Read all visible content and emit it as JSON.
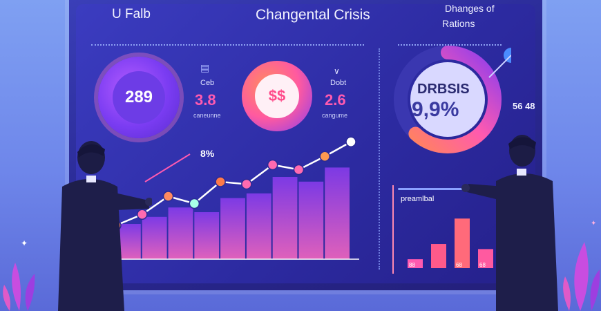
{
  "header": {
    "left_title": "U Falb",
    "center_title": "Changental Crisis",
    "right_title_line1": "Dhanges of",
    "right_title_line2": "Rations"
  },
  "kpis": [
    {
      "value": "289"
    },
    {
      "value": "$$"
    }
  ],
  "stats": [
    {
      "label": "Ceb",
      "value": "3.8",
      "sub": "caneunne"
    },
    {
      "label": "Dobt",
      "value": "2.6",
      "sub": "cangume"
    }
  ],
  "donut": {
    "label": "DRBSIS",
    "value": "9,9%",
    "side_value": "56 48",
    "fraction": 0.62
  },
  "line_chart": {
    "annotation": "8%",
    "points": [
      0.28,
      0.37,
      0.52,
      0.46,
      0.64,
      0.62,
      0.78,
      0.74,
      0.85,
      0.97
    ],
    "bar_heights": [
      0.3,
      0.36,
      0.44,
      0.4,
      0.52,
      0.56,
      0.7,
      0.66,
      0.78,
      0.9
    ]
  },
  "bar_panel": {
    "label": "preamlbal",
    "values": [
      0.14,
      0.38,
      0.78,
      0.3
    ],
    "tick_labels": [
      "88",
      "",
      "68",
      "68"
    ]
  },
  "colors": {
    "accent_pink": "#ff5ab0",
    "accent_purple": "#8a3cf0",
    "accent_orange": "#ff7a4a"
  }
}
